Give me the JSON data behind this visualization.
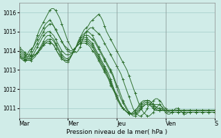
{
  "background_color": "#d0ece8",
  "grid_color": "#a0ccc8",
  "line_color": "#2d6e2d",
  "title": "",
  "xlabel": "Pression niveau de la mer( hPa )",
  "ylabel": "",
  "ylim": [
    1010.5,
    1016.5
  ],
  "yticks": [
    1011,
    1012,
    1013,
    1014,
    1015,
    1016
  ],
  "day_labels": [
    "Mar",
    "Mer",
    "Jeu",
    "Ven",
    "S"
  ],
  "day_positions": [
    0,
    24,
    48,
    72,
    96
  ],
  "series": [
    [
      1013.7,
      1013.6,
      1013.6,
      1013.7,
      1013.8,
      1014.0,
      1014.1,
      1014.2,
      1014.4,
      1014.6,
      1014.8,
      1015.0,
      1015.2,
      1015.4,
      1015.5,
      1015.6,
      1015.5,
      1015.3,
      1015.1,
      1014.9,
      1014.7,
      1014.5,
      1014.3,
      1014.1,
      1014.0,
      1013.9,
      1013.9,
      1014.0,
      1014.2,
      1014.5,
      1014.7,
      1014.9,
      1015.1,
      1015.2,
      1015.3,
      1015.5,
      1015.6,
      1015.7,
      1015.8,
      1015.9,
      1015.8,
      1015.6,
      1015.3,
      1015.0,
      1014.8,
      1014.6,
      1014.4,
      1014.2,
      1014.0,
      1013.8,
      1013.6,
      1013.4,
      1013.2,
      1013.0,
      1012.7,
      1012.4,
      1012.1,
      1011.8,
      1011.5,
      1011.2,
      1011.0,
      1010.8,
      1010.7,
      1010.6,
      1010.6,
      1010.7,
      1010.8,
      1011.0,
      1011.1,
      1011.2,
      1011.1,
      1010.9,
      1010.8,
      1010.7,
      1010.7,
      1010.8,
      1010.9,
      1011.0,
      1011.0,
      1010.9,
      1010.8,
      1010.7,
      1010.7,
      1010.8,
      1010.8,
      1010.8,
      1010.8,
      1010.8,
      1010.8,
      1010.8,
      1010.8,
      1010.8,
      1010.8,
      1010.8,
      1010.8,
      1010.8,
      1010.8
    ],
    [
      1013.7,
      1013.6,
      1013.5,
      1013.5,
      1013.6,
      1013.8,
      1014.0,
      1014.2,
      1014.5,
      1014.8,
      1015.1,
      1015.3,
      1015.5,
      1015.7,
      1015.9,
      1016.1,
      1016.2,
      1016.2,
      1016.1,
      1015.9,
      1015.7,
      1015.4,
      1015.1,
      1014.8,
      1014.5,
      1014.3,
      1014.1,
      1014.0,
      1013.9,
      1014.0,
      1014.2,
      1014.5,
      1014.8,
      1015.0,
      1015.1,
      1015.2,
      1015.2,
      1015.1,
      1015.0,
      1014.9,
      1014.8,
      1014.6,
      1014.4,
      1014.2,
      1014.0,
      1013.8,
      1013.6,
      1013.4,
      1013.2,
      1013.0,
      1012.8,
      1012.5,
      1012.2,
      1011.9,
      1011.6,
      1011.3,
      1011.0,
      1010.8,
      1010.7,
      1010.6,
      1010.6,
      1010.7,
      1010.8,
      1011.0,
      1011.2,
      1011.3,
      1011.4,
      1011.5,
      1011.5,
      1011.4,
      1011.3,
      1011.1,
      1011.0,
      1010.9,
      1010.8,
      1010.8,
      1010.8,
      1010.8,
      1010.8,
      1010.8,
      1010.8,
      1010.8,
      1010.8,
      1010.8,
      1010.8,
      1010.8,
      1010.8,
      1010.8,
      1010.8,
      1010.8,
      1010.8,
      1010.8,
      1010.8,
      1010.8,
      1010.8,
      1010.8,
      1010.8
    ],
    [
      1013.8,
      1013.7,
      1013.6,
      1013.5,
      1013.5,
      1013.6,
      1013.8,
      1014.0,
      1014.2,
      1014.4,
      1014.6,
      1014.8,
      1015.0,
      1015.2,
      1015.3,
      1015.4,
      1015.4,
      1015.3,
      1015.1,
      1014.9,
      1014.7,
      1014.5,
      1014.3,
      1014.2,
      1014.1,
      1014.0,
      1014.0,
      1014.1,
      1014.2,
      1014.4,
      1014.6,
      1014.8,
      1014.9,
      1015.0,
      1015.0,
      1014.9,
      1014.8,
      1014.6,
      1014.4,
      1014.2,
      1014.0,
      1013.8,
      1013.6,
      1013.4,
      1013.2,
      1013.0,
      1012.8,
      1012.5,
      1012.2,
      1012.0,
      1011.7,
      1011.4,
      1011.2,
      1011.0,
      1010.8,
      1010.7,
      1010.6,
      1010.6,
      1010.7,
      1010.8,
      1011.0,
      1011.1,
      1011.2,
      1011.2,
      1011.2,
      1011.2,
      1011.2,
      1011.2,
      1011.2,
      1011.2,
      1011.1,
      1011.0,
      1010.9,
      1010.8,
      1010.8,
      1010.8,
      1010.8,
      1010.8,
      1010.8,
      1010.8,
      1010.8,
      1010.8,
      1010.8,
      1010.8,
      1010.8,
      1010.8,
      1010.8,
      1010.8,
      1010.8,
      1010.8,
      1010.8,
      1010.8,
      1010.8,
      1010.8,
      1010.8,
      1010.8,
      1010.8
    ],
    [
      1013.8,
      1013.7,
      1013.6,
      1013.5,
      1013.5,
      1013.5,
      1013.6,
      1013.8,
      1014.0,
      1014.2,
      1014.4,
      1014.6,
      1014.8,
      1014.9,
      1015.0,
      1015.0,
      1014.9,
      1014.8,
      1014.6,
      1014.4,
      1014.2,
      1014.0,
      1013.9,
      1013.8,
      1013.8,
      1013.8,
      1013.9,
      1014.0,
      1014.2,
      1014.4,
      1014.6,
      1014.7,
      1014.8,
      1014.8,
      1014.8,
      1014.7,
      1014.6,
      1014.5,
      1014.3,
      1014.1,
      1013.9,
      1013.7,
      1013.5,
      1013.3,
      1013.1,
      1012.9,
      1012.7,
      1012.4,
      1012.1,
      1011.8,
      1011.5,
      1011.3,
      1011.1,
      1010.9,
      1010.8,
      1010.7,
      1010.7,
      1010.7,
      1010.8,
      1010.9,
      1011.0,
      1011.1,
      1011.2,
      1011.2,
      1011.2,
      1011.1,
      1011.0,
      1010.9,
      1010.9,
      1010.9,
      1010.9,
      1010.9,
      1010.9,
      1010.9,
      1010.9,
      1010.9,
      1010.9,
      1010.9,
      1010.9,
      1010.9,
      1010.9,
      1010.9,
      1010.9,
      1010.9,
      1010.9,
      1010.9,
      1010.9,
      1010.9,
      1010.9,
      1010.9,
      1010.9,
      1010.9,
      1010.9,
      1010.9,
      1010.9,
      1010.9,
      1010.9
    ],
    [
      1013.9,
      1013.8,
      1013.7,
      1013.6,
      1013.5,
      1013.5,
      1013.5,
      1013.6,
      1013.7,
      1013.9,
      1014.1,
      1014.3,
      1014.5,
      1014.7,
      1014.8,
      1014.8,
      1014.7,
      1014.6,
      1014.4,
      1014.2,
      1014.0,
      1013.8,
      1013.7,
      1013.6,
      1013.6,
      1013.7,
      1013.8,
      1014.0,
      1014.2,
      1014.4,
      1014.5,
      1014.6,
      1014.7,
      1014.7,
      1014.6,
      1014.5,
      1014.4,
      1014.2,
      1014.0,
      1013.8,
      1013.6,
      1013.4,
      1013.2,
      1013.0,
      1012.8,
      1012.5,
      1012.2,
      1011.9,
      1011.7,
      1011.4,
      1011.2,
      1011.0,
      1010.9,
      1010.8,
      1010.7,
      1010.7,
      1010.8,
      1010.9,
      1011.0,
      1011.1,
      1011.2,
      1011.3,
      1011.4,
      1011.4,
      1011.4,
      1011.3,
      1011.2,
      1011.1,
      1011.0,
      1011.0,
      1011.0,
      1010.9,
      1010.9,
      1010.9,
      1010.9,
      1010.9,
      1010.9,
      1010.9,
      1010.9,
      1010.9,
      1010.9,
      1010.9,
      1010.9,
      1010.9,
      1010.9,
      1010.9,
      1010.9,
      1010.9,
      1010.9,
      1010.9,
      1010.9,
      1010.9,
      1010.9,
      1010.9,
      1010.9,
      1010.9,
      1010.9
    ],
    [
      1014.0,
      1013.9,
      1013.8,
      1013.7,
      1013.6,
      1013.6,
      1013.6,
      1013.7,
      1013.8,
      1013.9,
      1014.1,
      1014.2,
      1014.4,
      1014.5,
      1014.6,
      1014.6,
      1014.6,
      1014.5,
      1014.3,
      1014.1,
      1013.9,
      1013.7,
      1013.6,
      1013.5,
      1013.5,
      1013.6,
      1013.8,
      1014.0,
      1014.2,
      1014.4,
      1014.5,
      1014.6,
      1014.6,
      1014.6,
      1014.5,
      1014.4,
      1014.3,
      1014.1,
      1013.9,
      1013.7,
      1013.5,
      1013.3,
      1013.1,
      1012.9,
      1012.6,
      1012.4,
      1012.1,
      1011.9,
      1011.6,
      1011.4,
      1011.2,
      1011.0,
      1010.9,
      1010.8,
      1010.7,
      1010.7,
      1010.8,
      1010.9,
      1011.0,
      1011.2,
      1011.3,
      1011.4,
      1011.4,
      1011.4,
      1011.4,
      1011.3,
      1011.2,
      1011.1,
      1011.0,
      1011.0,
      1010.9,
      1010.9,
      1010.9,
      1010.9,
      1010.9,
      1010.9,
      1010.9,
      1010.9,
      1010.9,
      1010.9,
      1010.9,
      1010.9,
      1010.9,
      1010.9,
      1010.9,
      1010.9,
      1010.9,
      1010.9,
      1010.9,
      1010.9,
      1010.9,
      1010.9,
      1010.9,
      1010.9,
      1010.9,
      1010.9,
      1010.9
    ],
    [
      1014.1,
      1014.0,
      1013.9,
      1013.8,
      1013.7,
      1013.7,
      1013.7,
      1013.7,
      1013.8,
      1013.9,
      1014.0,
      1014.2,
      1014.3,
      1014.4,
      1014.5,
      1014.5,
      1014.4,
      1014.3,
      1014.1,
      1013.9,
      1013.8,
      1013.6,
      1013.5,
      1013.5,
      1013.5,
      1013.6,
      1013.8,
      1014.0,
      1014.2,
      1014.3,
      1014.4,
      1014.5,
      1014.5,
      1014.5,
      1014.4,
      1014.3,
      1014.2,
      1014.0,
      1013.8,
      1013.6,
      1013.4,
      1013.2,
      1013.0,
      1012.8,
      1012.6,
      1012.3,
      1012.1,
      1011.8,
      1011.6,
      1011.4,
      1011.2,
      1011.0,
      1010.9,
      1010.8,
      1010.8,
      1010.7,
      1010.7,
      1010.8,
      1010.9,
      1011.0,
      1011.1,
      1011.2,
      1011.3,
      1011.3,
      1011.3,
      1011.2,
      1011.1,
      1011.0,
      1010.9,
      1010.9,
      1010.9,
      1010.9,
      1010.9,
      1010.9,
      1010.9,
      1010.9,
      1010.9,
      1010.9,
      1010.9,
      1010.9,
      1010.9,
      1010.9,
      1010.9,
      1010.9,
      1010.9,
      1010.9,
      1010.9,
      1010.9,
      1010.9,
      1010.9,
      1010.9,
      1010.9,
      1010.9,
      1010.9,
      1010.9,
      1010.9,
      1010.9
    ],
    [
      1014.2,
      1014.1,
      1014.0,
      1013.9,
      1013.8,
      1013.8,
      1013.7,
      1013.8,
      1013.8,
      1013.9,
      1014.0,
      1014.1,
      1014.3,
      1014.4,
      1014.4,
      1014.4,
      1014.4,
      1014.3,
      1014.1,
      1013.9,
      1013.7,
      1013.6,
      1013.5,
      1013.4,
      1013.4,
      1013.6,
      1013.8,
      1014.0,
      1014.2,
      1014.3,
      1014.4,
      1014.4,
      1014.4,
      1014.4,
      1014.3,
      1014.2,
      1014.0,
      1013.9,
      1013.7,
      1013.5,
      1013.3,
      1013.1,
      1012.9,
      1012.7,
      1012.5,
      1012.2,
      1012.0,
      1011.8,
      1011.5,
      1011.3,
      1011.1,
      1011.0,
      1010.9,
      1010.8,
      1010.7,
      1010.7,
      1010.7,
      1010.7,
      1010.8,
      1010.9,
      1011.0,
      1011.1,
      1011.2,
      1011.2,
      1011.2,
      1011.1,
      1011.0,
      1010.9,
      1010.9,
      1010.9,
      1010.9,
      1010.9,
      1010.9,
      1010.9,
      1010.9,
      1010.9,
      1010.9,
      1010.9,
      1010.9,
      1010.9,
      1010.9,
      1010.9,
      1010.9,
      1010.9,
      1010.9,
      1010.9,
      1010.9,
      1010.9,
      1010.9,
      1010.9,
      1010.9,
      1010.9,
      1010.9,
      1010.9,
      1010.9,
      1010.9,
      1010.9
    ]
  ]
}
